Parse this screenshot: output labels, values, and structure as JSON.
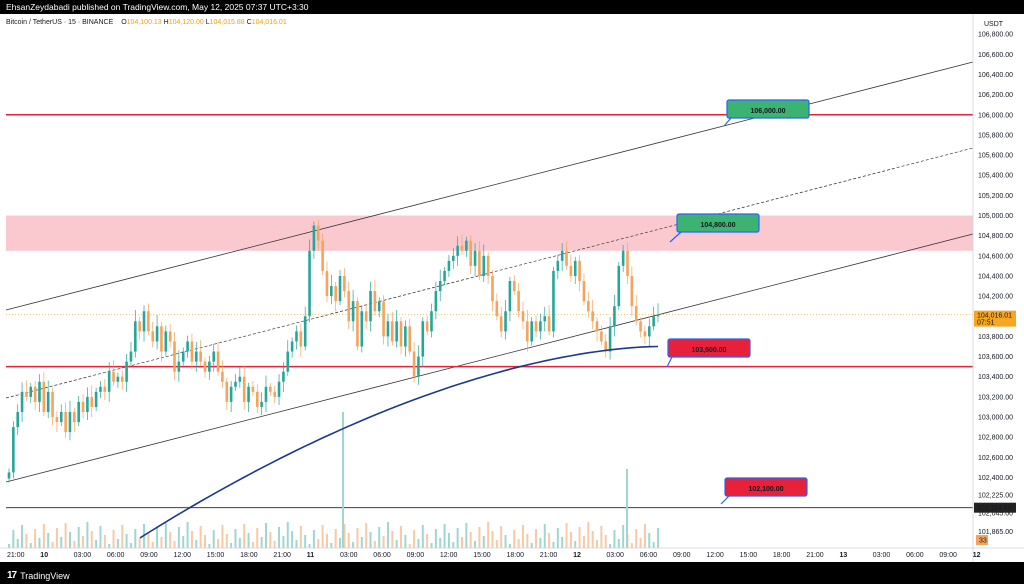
{
  "header": {
    "publisher_line": "EhsanZeydabadi published on TradingView.com, May 12, 2025 07:37 UTC+3:30"
  },
  "legend": {
    "symbol": "Bitcoin / TetherUS · 15 · BINANCE",
    "o_label": "O",
    "o_value": "104,100.13",
    "h_label": "H",
    "h_value": "104,120.00",
    "l_label": "L",
    "l_value": "104,015.88",
    "c_label": "C",
    "c_value": "104,016.01"
  },
  "footer": {
    "brand": "TradingView"
  },
  "colors": {
    "up": "#26a69a",
    "down": "#f7a35c",
    "resistance_zone": "#f9c9cf",
    "red_line": "#e8213b",
    "ma_line": "#1a3a8f",
    "green_label": "#3cb371",
    "red_label": "#e8213b",
    "blue_border": "#2962ff"
  },
  "chart_data": {
    "type": "candlestick",
    "symbol": "Bitcoin / TetherUS",
    "interval": "15",
    "exchange": "BINANCE",
    "currency_label": "USDT",
    "ylim": [
      101700,
      107000
    ],
    "y_ticks": [
      "106,800.00",
      "106,600.00",
      "106,400.00",
      "106,200.00",
      "106,000.00",
      "105,800.00",
      "105,600.00",
      "105,400.00",
      "105,200.00",
      "105,000.00",
      "104,800.00",
      "104,600.00",
      "104,400.00",
      "104,200.00",
      "104,000.00",
      "103,800.00",
      "103,600.00",
      "103,400.00",
      "103,200.00",
      "103,000.00",
      "102,800.00",
      "102,600.00",
      "102,400.00",
      "102,225.00",
      "102,045.00",
      "101,865.00"
    ],
    "x_ticks": [
      "21:00",
      "10",
      "03:00",
      "06:00",
      "09:00",
      "12:00",
      "15:00",
      "18:00",
      "21:00",
      "11",
      "03:00",
      "06:00",
      "09:00",
      "12:00",
      "15:00",
      "18:00",
      "21:00",
      "12",
      "03:00",
      "06:00",
      "09:00",
      "12:00",
      "15:00",
      "18:00",
      "21:00",
      "13",
      "03:00",
      "06:00",
      "09:00",
      "12"
    ],
    "last_price": "104,016.01",
    "countdown": "07:51",
    "ref_level_value": "102,114.66",
    "volume_badge": "33",
    "annotations": [
      "106,000.00",
      "104,800.00",
      "103,500.00",
      "102,100.00"
    ],
    "horizontal_levels": [
      106000,
      103500,
      102100
    ],
    "resistance_zone": [
      104650,
      105000
    ],
    "candles_close": [
      102450,
      102900,
      103050,
      103250,
      103200,
      103300,
      103150,
      103350,
      103050,
      103250,
      103000,
      102950,
      103050,
      102850,
      103050,
      102950,
      103150,
      103050,
      103200,
      103100,
      103250,
      103300,
      103250,
      103450,
      103350,
      103400,
      103350,
      103550,
      103650,
      103950,
      103850,
      104050,
      103850,
      103750,
      103900,
      103650,
      103850,
      103750,
      103450,
      103550,
      103650,
      103750,
      103550,
      103650,
      103550,
      103450,
      103550,
      103650,
      103450,
      103350,
      103150,
      103300,
      103350,
      103400,
      103150,
      103300,
      103250,
      103100,
      103150,
      103300,
      103250,
      103200,
      103350,
      103450,
      103650,
      103750,
      103850,
      103700,
      104000,
      104650,
      104900,
      104750,
      104450,
      104200,
      104300,
      104150,
      104400,
      104250,
      103950,
      104150,
      103700,
      104050,
      103950,
      104250,
      104050,
      104150,
      103800,
      103950,
      103750,
      103950,
      103700,
      103900,
      103650,
      103400,
      103600,
      103950,
      103850,
      104050,
      104250,
      104350,
      104450,
      104550,
      104600,
      104700,
      104650,
      104750,
      104500,
      104650,
      104400,
      104600,
      104400,
      104150,
      104000,
      103850,
      104050,
      104350,
      104250,
      104050,
      103950,
      103750,
      103950,
      103850,
      103950,
      104000,
      103850,
      104450,
      104550,
      104650,
      104500,
      104400,
      104550,
      104350,
      104150,
      104050,
      103950,
      103850,
      103750,
      103650,
      103900,
      104100,
      104500,
      104650,
      104400,
      104100,
      103950,
      103850,
      103800,
      103900,
      104000,
      104016
    ]
  }
}
